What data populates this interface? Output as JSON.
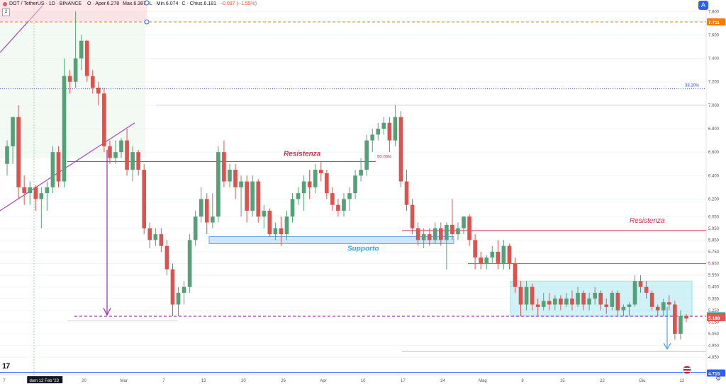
{
  "header": {
    "symbol": "DOT / TetherUS · 1D · BINANCE",
    "open": "O · Aper.6.278",
    "high": "Max.6.387",
    "low": "L · Min.6.074",
    "close": "C · Chius.6.181",
    "change": "−0.097 (−1.55%)",
    "count_box": "2",
    "settings_label": "A"
  },
  "colors": {
    "up": "#56a077",
    "down": "#d9534f",
    "resistance": "#d23150",
    "support": "#3a7bd5",
    "fib": "#2f4fbf",
    "level": "#9c27b0"
  },
  "chart_data": {
    "type": "candlestick",
    "symbol": "DOT / TetherUS",
    "interval": "1D",
    "exchange": "BINANCE",
    "ylim": [
      4.7,
      7.85
    ],
    "price_ticks": [
      7.8,
      7.6,
      7.4,
      7.2,
      7.0,
      6.8,
      6.6,
      6.4,
      6.2,
      6.05,
      5.95,
      5.85,
      5.75,
      5.65,
      5.55,
      5.45,
      5.35,
      5.25,
      5.15,
      5.05,
      4.95,
      4.85
    ],
    "price_tick_labels": [
      "7.800",
      "7.600",
      "7.400",
      "7.200",
      "7.000",
      "6.800",
      "6.600",
      "6.400",
      "6.200",
      "6.050",
      "5.950",
      "5.850",
      "5.750",
      "5.650",
      "5.550",
      "5.450",
      "5.350",
      "5.250",
      "5.150",
      "5.050",
      "4.950",
      "4.850"
    ],
    "date_labels": [
      "7",
      "dom 12 Feb '23",
      "20",
      "Mar",
      "7",
      "13",
      "20",
      "26",
      "Apr",
      "10",
      "17",
      "24",
      "Mag",
      "8",
      "15",
      "22",
      "Giu",
      "12"
    ],
    "highlight_date": "dom 12 Feb '23",
    "candles": [
      {
        "o": 6.5,
        "h": 6.7,
        "l": 6.4,
        "c": 6.65
      },
      {
        "o": 6.65,
        "h": 6.9,
        "l": 6.5,
        "c": 6.9
      },
      {
        "o": 6.9,
        "h": 7.0,
        "l": 6.2,
        "c": 6.3
      },
      {
        "o": 6.3,
        "h": 6.4,
        "l": 6.15,
        "c": 6.25
      },
      {
        "o": 6.25,
        "h": 6.35,
        "l": 6.15,
        "c": 6.3
      },
      {
        "o": 6.3,
        "h": 6.32,
        "l": 6.1,
        "c": 6.2
      },
      {
        "o": 6.2,
        "h": 6.3,
        "l": 5.95,
        "c": 6.25
      },
      {
        "o": 6.25,
        "h": 6.35,
        "l": 6.1,
        "c": 6.3
      },
      {
        "o": 6.3,
        "h": 6.65,
        "l": 6.25,
        "c": 6.6
      },
      {
        "o": 6.6,
        "h": 6.65,
        "l": 6.3,
        "c": 6.35
      },
      {
        "o": 6.35,
        "h": 7.4,
        "l": 6.3,
        "c": 7.25
      },
      {
        "o": 7.25,
        "h": 7.3,
        "l": 7.1,
        "c": 7.2
      },
      {
        "o": 7.2,
        "h": 7.8,
        "l": 7.15,
        "c": 7.4
      },
      {
        "o": 7.4,
        "h": 7.6,
        "l": 7.3,
        "c": 7.55
      },
      {
        "o": 7.55,
        "h": 7.56,
        "l": 7.2,
        "c": 7.25
      },
      {
        "o": 7.25,
        "h": 7.3,
        "l": 7.1,
        "c": 7.15
      },
      {
        "o": 7.15,
        "h": 7.2,
        "l": 7.0,
        "c": 7.1
      },
      {
        "o": 7.1,
        "h": 7.15,
        "l": 6.6,
        "c": 6.65
      },
      {
        "o": 6.65,
        "h": 6.7,
        "l": 6.5,
        "c": 6.55
      },
      {
        "o": 6.55,
        "h": 6.7,
        "l": 6.5,
        "c": 6.6
      },
      {
        "o": 6.6,
        "h": 6.72,
        "l": 6.55,
        "c": 6.7
      },
      {
        "o": 6.7,
        "h": 6.8,
        "l": 6.4,
        "c": 6.45
      },
      {
        "o": 6.45,
        "h": 6.65,
        "l": 6.35,
        "c": 6.6
      },
      {
        "o": 6.6,
        "h": 6.62,
        "l": 6.4,
        "c": 6.45
      },
      {
        "o": 6.45,
        "h": 6.5,
        "l": 5.9,
        "c": 5.95
      },
      {
        "o": 5.95,
        "h": 6.0,
        "l": 5.78,
        "c": 5.85
      },
      {
        "o": 5.85,
        "h": 5.95,
        "l": 5.8,
        "c": 5.9
      },
      {
        "o": 5.9,
        "h": 5.95,
        "l": 5.75,
        "c": 5.8
      },
      {
        "o": 5.8,
        "h": 5.85,
        "l": 5.55,
        "c": 5.6
      },
      {
        "o": 5.6,
        "h": 5.65,
        "l": 5.2,
        "c": 5.3
      },
      {
        "o": 5.3,
        "h": 5.45,
        "l": 5.2,
        "c": 5.4
      },
      {
        "o": 5.4,
        "h": 5.5,
        "l": 5.3,
        "c": 5.45
      },
      {
        "o": 5.45,
        "h": 5.9,
        "l": 5.4,
        "c": 5.85
      },
      {
        "o": 5.85,
        "h": 6.1,
        "l": 5.8,
        "c": 6.05
      },
      {
        "o": 6.05,
        "h": 6.3,
        "l": 6.0,
        "c": 6.2
      },
      {
        "o": 6.2,
        "h": 6.25,
        "l": 5.9,
        "c": 6.0
      },
      {
        "o": 6.0,
        "h": 6.25,
        "l": 5.95,
        "c": 6.05
      },
      {
        "o": 6.05,
        "h": 6.65,
        "l": 6.0,
        "c": 6.6
      },
      {
        "o": 6.6,
        "h": 6.7,
        "l": 6.3,
        "c": 6.35
      },
      {
        "o": 6.35,
        "h": 6.5,
        "l": 6.3,
        "c": 6.45
      },
      {
        "o": 6.45,
        "h": 6.5,
        "l": 6.2,
        "c": 6.3
      },
      {
        "o": 6.3,
        "h": 6.4,
        "l": 6.05,
        "c": 6.35
      },
      {
        "o": 6.35,
        "h": 6.4,
        "l": 6.0,
        "c": 6.1
      },
      {
        "o": 6.1,
        "h": 6.4,
        "l": 6.05,
        "c": 6.35
      },
      {
        "o": 6.35,
        "h": 6.37,
        "l": 6.0,
        "c": 6.05
      },
      {
        "o": 6.05,
        "h": 6.15,
        "l": 5.95,
        "c": 6.1
      },
      {
        "o": 6.1,
        "h": 6.12,
        "l": 5.88,
        "c": 5.9
      },
      {
        "o": 5.9,
        "h": 6.0,
        "l": 5.85,
        "c": 5.95
      },
      {
        "o": 5.95,
        "h": 6.05,
        "l": 5.8,
        "c": 5.9
      },
      {
        "o": 5.9,
        "h": 6.1,
        "l": 5.85,
        "c": 6.05
      },
      {
        "o": 6.05,
        "h": 6.25,
        "l": 6.0,
        "c": 6.2
      },
      {
        "o": 6.2,
        "h": 6.3,
        "l": 6.15,
        "c": 6.25
      },
      {
        "o": 6.25,
        "h": 6.4,
        "l": 6.1,
        "c": 6.35
      },
      {
        "o": 6.35,
        "h": 6.45,
        "l": 6.2,
        "c": 6.3
      },
      {
        "o": 6.3,
        "h": 6.5,
        "l": 6.25,
        "c": 6.45
      },
      {
        "o": 6.45,
        "h": 6.52,
        "l": 6.35,
        "c": 6.42
      },
      {
        "o": 6.42,
        "h": 6.45,
        "l": 6.2,
        "c": 6.25
      },
      {
        "o": 6.25,
        "h": 6.3,
        "l": 6.1,
        "c": 6.15
      },
      {
        "o": 6.15,
        "h": 6.2,
        "l": 6.05,
        "c": 6.1
      },
      {
        "o": 6.1,
        "h": 6.25,
        "l": 6.05,
        "c": 6.2
      },
      {
        "o": 6.2,
        "h": 6.3,
        "l": 6.1,
        "c": 6.25
      },
      {
        "o": 6.25,
        "h": 6.45,
        "l": 6.2,
        "c": 6.4
      },
      {
        "o": 6.4,
        "h": 6.55,
        "l": 6.35,
        "c": 6.45
      },
      {
        "o": 6.45,
        "h": 6.75,
        "l": 6.4,
        "c": 6.7
      },
      {
        "o": 6.7,
        "h": 6.8,
        "l": 6.6,
        "c": 6.75
      },
      {
        "o": 6.75,
        "h": 6.85,
        "l": 6.7,
        "c": 6.8
      },
      {
        "o": 6.8,
        "h": 6.9,
        "l": 6.75,
        "c": 6.85
      },
      {
        "o": 6.85,
        "h": 6.9,
        "l": 6.6,
        "c": 6.7
      },
      {
        "o": 6.7,
        "h": 7.0,
        "l": 6.65,
        "c": 6.9
      },
      {
        "o": 6.9,
        "h": 6.95,
        "l": 6.3,
        "c": 6.35
      },
      {
        "o": 6.35,
        "h": 6.45,
        "l": 6.1,
        "c": 6.15
      },
      {
        "o": 6.15,
        "h": 6.2,
        "l": 5.9,
        "c": 5.95
      },
      {
        "o": 5.95,
        "h": 6.0,
        "l": 5.8,
        "c": 5.85
      },
      {
        "o": 5.85,
        "h": 5.95,
        "l": 5.78,
        "c": 5.9
      },
      {
        "o": 5.9,
        "h": 5.95,
        "l": 5.8,
        "c": 5.85
      },
      {
        "o": 5.85,
        "h": 6.0,
        "l": 5.82,
        "c": 5.95
      },
      {
        "o": 5.95,
        "h": 6.0,
        "l": 5.8,
        "c": 5.85
      },
      {
        "o": 5.85,
        "h": 6.0,
        "l": 5.6,
        "c": 5.98
      },
      {
        "o": 5.98,
        "h": 6.2,
        "l": 5.85,
        "c": 5.9
      },
      {
        "o": 5.9,
        "h": 6.0,
        "l": 5.85,
        "c": 5.95
      },
      {
        "o": 5.95,
        "h": 6.05,
        "l": 5.9,
        "c": 6.05
      },
      {
        "o": 6.05,
        "h": 6.07,
        "l": 5.8,
        "c": 5.85
      },
      {
        "o": 5.85,
        "h": 5.9,
        "l": 5.6,
        "c": 5.7
      },
      {
        "o": 5.7,
        "h": 5.75,
        "l": 5.6,
        "c": 5.65
      },
      {
        "o": 5.65,
        "h": 5.72,
        "l": 5.6,
        "c": 5.7
      },
      {
        "o": 5.7,
        "h": 5.8,
        "l": 5.65,
        "c": 5.75
      },
      {
        "o": 5.75,
        "h": 5.85,
        "l": 5.6,
        "c": 5.65
      },
      {
        "o": 5.65,
        "h": 5.85,
        "l": 5.6,
        "c": 5.8
      },
      {
        "o": 5.8,
        "h": 5.82,
        "l": 5.6,
        "c": 5.65
      },
      {
        "o": 5.65,
        "h": 5.7,
        "l": 5.4,
        "c": 5.45
      },
      {
        "o": 5.45,
        "h": 5.5,
        "l": 5.2,
        "c": 5.3
      },
      {
        "o": 5.3,
        "h": 5.5,
        "l": 5.25,
        "c": 5.45
      },
      {
        "o": 5.45,
        "h": 5.48,
        "l": 5.25,
        "c": 5.3
      },
      {
        "o": 5.3,
        "h": 5.35,
        "l": 5.2,
        "c": 5.28
      },
      {
        "o": 5.28,
        "h": 5.4,
        "l": 5.25,
        "c": 5.33
      },
      {
        "o": 5.33,
        "h": 5.4,
        "l": 5.25,
        "c": 5.3
      },
      {
        "o": 5.3,
        "h": 5.38,
        "l": 5.25,
        "c": 5.35
      },
      {
        "o": 5.35,
        "h": 5.38,
        "l": 5.25,
        "c": 5.3
      },
      {
        "o": 5.3,
        "h": 5.4,
        "l": 5.28,
        "c": 5.35
      },
      {
        "o": 5.35,
        "h": 5.42,
        "l": 5.25,
        "c": 5.3
      },
      {
        "o": 5.3,
        "h": 5.45,
        "l": 5.28,
        "c": 5.4
      },
      {
        "o": 5.4,
        "h": 5.42,
        "l": 5.25,
        "c": 5.3
      },
      {
        "o": 5.3,
        "h": 5.4,
        "l": 5.25,
        "c": 5.35
      },
      {
        "o": 5.35,
        "h": 5.45,
        "l": 5.3,
        "c": 5.4
      },
      {
        "o": 5.4,
        "h": 5.42,
        "l": 5.25,
        "c": 5.3
      },
      {
        "o": 5.3,
        "h": 5.35,
        "l": 5.22,
        "c": 5.28
      },
      {
        "o": 5.28,
        "h": 5.42,
        "l": 5.25,
        "c": 5.4
      },
      {
        "o": 5.4,
        "h": 5.42,
        "l": 5.2,
        "c": 5.25
      },
      {
        "o": 5.25,
        "h": 5.3,
        "l": 5.2,
        "c": 5.28
      },
      {
        "o": 5.28,
        "h": 5.32,
        "l": 5.2,
        "c": 5.3
      },
      {
        "o": 5.3,
        "h": 5.55,
        "l": 5.28,
        "c": 5.5
      },
      {
        "o": 5.5,
        "h": 5.55,
        "l": 5.4,
        "c": 5.45
      },
      {
        "o": 5.45,
        "h": 5.5,
        "l": 5.35,
        "c": 5.4
      },
      {
        "o": 5.4,
        "h": 5.42,
        "l": 5.25,
        "c": 5.28
      },
      {
        "o": 5.28,
        "h": 5.3,
        "l": 5.2,
        "c": 5.25
      },
      {
        "o": 5.25,
        "h": 5.35,
        "l": 5.2,
        "c": 5.32
      },
      {
        "o": 5.32,
        "h": 5.38,
        "l": 5.25,
        "c": 5.3
      },
      {
        "o": 5.3,
        "h": 5.33,
        "l": 5.0,
        "c": 5.05
      },
      {
        "o": 5.05,
        "h": 5.25,
        "l": 5.0,
        "c": 5.2
      },
      {
        "o": 5.2,
        "h": 5.22,
        "l": 5.15,
        "c": 5.18
      }
    ],
    "drawings": {
      "resistance_1": {
        "label": "Resistenza",
        "price": 6.52,
        "fib_label": "50.00%"
      },
      "resistance_2": {
        "label": "Resistenza",
        "price": 5.93
      },
      "support": {
        "label": "Supporto",
        "low": 5.82,
        "high": 5.88
      },
      "fib_382": {
        "label": "38.20%",
        "price": 7.14
      },
      "fib_top": {
        "price": 7.711
      },
      "level_1": {
        "price": 5.2
      },
      "level_2": {
        "price": 4.72
      },
      "grey_line": {
        "price": 4.9
      },
      "upper_line": {
        "price": 5.65
      },
      "box_range": {
        "low": 5.2,
        "high": 5.5
      }
    },
    "price_badges": [
      {
        "label": "7.711",
        "price": 7.711,
        "color": "#f57c00"
      },
      {
        "label": "5.204",
        "price": 5.204,
        "color": "#26a69a"
      },
      {
        "label": "5.188",
        "price": 5.188,
        "color": "#ef5350"
      },
      {
        "label": "4.715",
        "price": 4.715,
        "color": "#2962ff"
      }
    ]
  }
}
